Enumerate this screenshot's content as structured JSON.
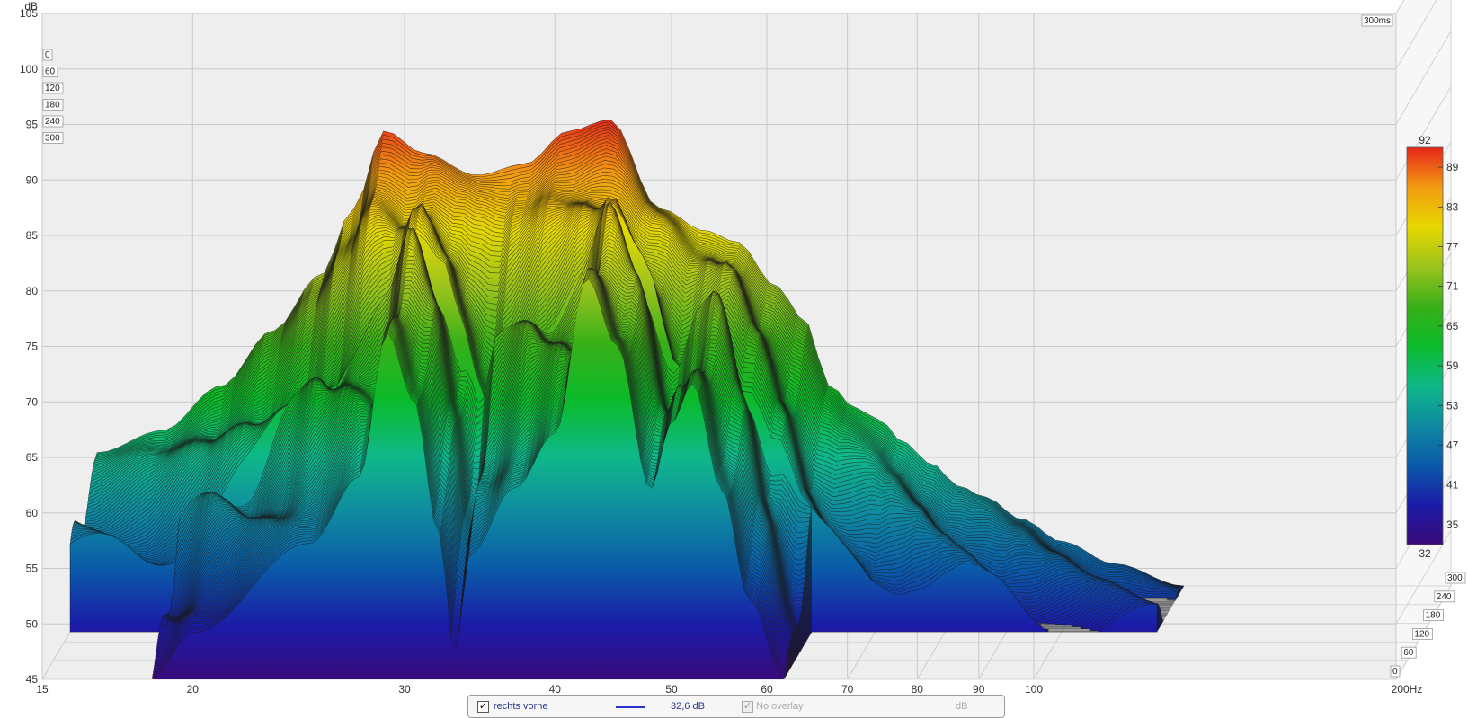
{
  "chart_data": {
    "type": "area",
    "x_axis": {
      "unit": "Hz",
      "scale": "log",
      "range": [
        15,
        200
      ],
      "ticks": [
        15,
        20,
        30,
        40,
        50,
        60,
        70,
        80,
        90,
        100,
        200
      ],
      "tick_labels": [
        "15",
        "20",
        "30",
        "40",
        "50",
        "60",
        "70",
        "80",
        "90",
        "100",
        "200Hz"
      ]
    },
    "y_axis": {
      "unit": "dB",
      "label": "dB",
      "range": [
        45,
        105
      ],
      "ticks": [
        45,
        50,
        55,
        60,
        65,
        70,
        75,
        80,
        85,
        90,
        95,
        100,
        105
      ],
      "tick_labels": [
        "45",
        "50",
        "55",
        "60",
        "65",
        "70",
        "75",
        "80",
        "85",
        "90",
        "95",
        "100",
        "105"
      ]
    },
    "time_axis": {
      "unit": "ms",
      "range": [
        0,
        300
      ],
      "ticks": [
        0,
        60,
        120,
        180,
        240,
        300
      ],
      "tick_labels": [
        "0",
        "60",
        "120",
        "180",
        "240",
        "300"
      ],
      "end_label": "300ms"
    },
    "color_scale": {
      "min": 32,
      "max": 92,
      "min_label": "32",
      "max_label": "92",
      "tick_labels": [
        "89",
        "83",
        "77",
        "71",
        "65",
        "59",
        "53",
        "47",
        "41",
        "35"
      ],
      "stops": [
        "#3a0a78",
        "#1b1ba8",
        "#0a5aa8",
        "#0f8aa0",
        "#0fb889",
        "#0aba2a",
        "#38b018",
        "#9cc31c",
        "#e6d800",
        "#f29a10",
        "#e6261a"
      ]
    },
    "series": [
      {
        "name": "rechts vorne",
        "time_slice_ms": 0,
        "points": [
          [
            18.5,
            45
          ],
          [
            20,
            49
          ],
          [
            25,
            57
          ],
          [
            27.5,
            63
          ],
          [
            29,
            76
          ],
          [
            30.5,
            70
          ],
          [
            32,
            58
          ],
          [
            33,
            47
          ],
          [
            34,
            56
          ],
          [
            37,
            62
          ],
          [
            40,
            67
          ],
          [
            42.5,
            81
          ],
          [
            45,
            75
          ],
          [
            48,
            62
          ],
          [
            50,
            68
          ],
          [
            52,
            71.5
          ],
          [
            55,
            62
          ],
          [
            58,
            52
          ],
          [
            62,
            45
          ]
        ]
      },
      {
        "name": "",
        "time_slice_ms": 300,
        "points": [
          [
            15,
            57
          ],
          [
            17,
            59
          ],
          [
            19,
            63
          ],
          [
            21,
            68
          ],
          [
            23,
            73
          ],
          [
            24.5,
            79
          ],
          [
            26,
            86
          ],
          [
            28,
            84
          ],
          [
            31,
            82
          ],
          [
            34,
            83
          ],
          [
            37,
            86
          ],
          [
            40,
            87
          ],
          [
            44,
            79
          ],
          [
            48,
            77
          ],
          [
            51,
            76
          ],
          [
            55,
            72
          ],
          [
            58,
            69
          ],
          [
            61,
            63
          ],
          [
            64,
            61
          ],
          [
            67,
            60
          ],
          [
            70,
            58
          ],
          [
            74,
            56
          ],
          [
            78,
            54
          ],
          [
            82,
            53
          ],
          [
            88,
            51
          ],
          [
            95,
            49
          ],
          [
            105,
            47
          ],
          [
            120,
            45
          ]
        ]
      }
    ]
  },
  "legend": {
    "series_name": "rechts vorne",
    "series_value": "32,6 dB",
    "series_color": "#2733c9",
    "overlay_label": "No overlay",
    "overlay_unit": "dB",
    "check_mark": "✓"
  }
}
